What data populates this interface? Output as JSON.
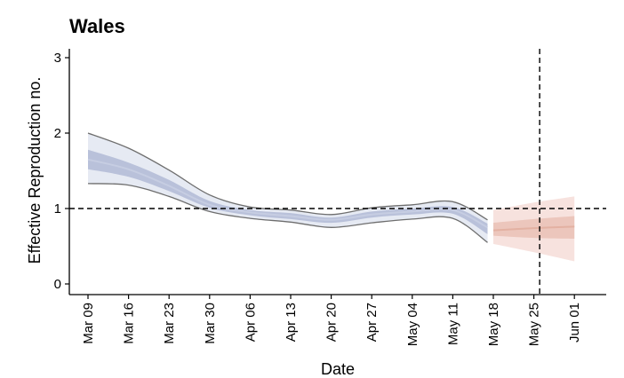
{
  "chart_data": {
    "type": "area",
    "title": "Wales",
    "xlabel": "Date",
    "ylabel": "Effective Reproduction no.",
    "ylim": [
      0,
      3
    ],
    "yticks": [
      "0",
      "1",
      "2",
      "3"
    ],
    "xticks": [
      "Mar 09",
      "Mar 16",
      "Mar 23",
      "Mar 30",
      "Apr 06",
      "Apr 13",
      "Apr 20",
      "Apr 27",
      "May 04",
      "May 11",
      "May 18",
      "May 25",
      "Jun 01"
    ],
    "reference_line_y": 1,
    "vertical_line_date": "May 26",
    "grid": false,
    "legend": "none",
    "series": [
      {
        "kind": "estimate",
        "color_outer": "#e6eaf3",
        "color_inner": "#b9c1da",
        "color_median": "#c6cde2",
        "color_edge": "#6e6e6e",
        "points": [
          {
            "x": "Mar 09",
            "lo90": 1.33,
            "lo50": 1.52,
            "med": 1.65,
            "hi50": 1.78,
            "hi90": 2.0
          },
          {
            "x": "Mar 16",
            "lo90": 1.31,
            "lo50": 1.42,
            "med": 1.52,
            "hi50": 1.61,
            "hi90": 1.8
          },
          {
            "x": "Mar 23",
            "lo90": 1.16,
            "lo50": 1.23,
            "med": 1.3,
            "hi50": 1.38,
            "hi90": 1.51
          },
          {
            "x": "Mar 30",
            "lo90": 0.96,
            "lo50": 1.01,
            "med": 1.05,
            "hi50": 1.1,
            "hi90": 1.18
          },
          {
            "x": "Apr 06",
            "lo90": 0.87,
            "lo50": 0.91,
            "med": 0.95,
            "hi50": 0.98,
            "hi90": 1.02
          },
          {
            "x": "Apr 13",
            "lo90": 0.82,
            "lo50": 0.86,
            "med": 0.9,
            "hi50": 0.94,
            "hi90": 0.98
          },
          {
            "x": "Apr 20",
            "lo90": 0.75,
            "lo50": 0.81,
            "med": 0.85,
            "hi50": 0.88,
            "hi90": 0.92
          },
          {
            "x": "Apr 27",
            "lo90": 0.81,
            "lo50": 0.88,
            "med": 0.92,
            "hi50": 0.96,
            "hi90": 1.01
          },
          {
            "x": "May 04",
            "lo90": 0.86,
            "lo50": 0.92,
            "med": 0.96,
            "hi50": 1.0,
            "hi90": 1.05
          },
          {
            "x": "May 11",
            "lo90": 0.87,
            "lo50": 0.93,
            "med": 0.98,
            "hi50": 1.02,
            "hi90": 1.09
          },
          {
            "x": "May 17",
            "lo90": 0.55,
            "lo50": 0.66,
            "med": 0.75,
            "hi50": 0.8,
            "hi90": 0.85
          }
        ]
      },
      {
        "kind": "forecast",
        "color_outer": "#f7e2de",
        "color_inner": "#ecc6bc",
        "color_median": "#e3b1a2",
        "color_edge": "none",
        "points": [
          {
            "x": "May 18",
            "lo90": 0.53,
            "lo50": 0.64,
            "med": 0.71,
            "hi50": 0.81,
            "hi90": 0.98
          },
          {
            "x": "May 25",
            "lo90": 0.42,
            "lo50": 0.61,
            "med": 0.74,
            "hi50": 0.86,
            "hi90": 1.08
          },
          {
            "x": "Jun 01",
            "lo90": 0.3,
            "lo50": 0.6,
            "med": 0.76,
            "hi50": 0.9,
            "hi90": 1.16
          }
        ]
      }
    ]
  }
}
